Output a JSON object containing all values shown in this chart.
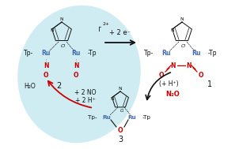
{
  "bg_color": "#ffffff",
  "ellipse_color": "#a8dde8",
  "ellipse_alpha": 0.55,
  "blue": "#4169b0",
  "red": "#cc0000",
  "black": "#111111",
  "figsize": [
    3.02,
    1.89
  ],
  "dpi": 100,
  "arrow_top_label": "+ 2 e⁻",
  "arrow_right_label1": "(+ H⁺)",
  "arrow_right_label2": "N₂O",
  "arrow_left_label1": "+ 2 NO",
  "arrow_left_label2": "+ 2 H⁺",
  "arrow_left_label3": "H₂O",
  "label2": "2",
  "label1": "1",
  "label3": "3"
}
